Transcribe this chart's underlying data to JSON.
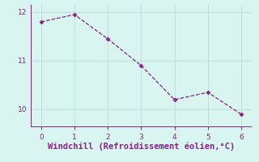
{
  "x": [
    0,
    1,
    2,
    3,
    4,
    5,
    6
  ],
  "y": [
    11.8,
    11.95,
    11.45,
    10.9,
    10.2,
    10.35,
    9.9
  ],
  "line_color": "#882288",
  "marker": "D",
  "marker_size": 2.5,
  "line_style": "--",
  "line_width": 0.9,
  "xlabel": "Windchill (Refroidissement éolien,°C)",
  "xlabel_fontsize": 7.5,
  "xlim": [
    -0.3,
    6.3
  ],
  "ylim": [
    9.65,
    12.15
  ],
  "yticks": [
    10,
    11,
    12
  ],
  "xticks": [
    0,
    1,
    2,
    3,
    4,
    5,
    6
  ],
  "background_color": "#d8f5ef",
  "grid_color": "#b8ddd8",
  "tick_color": "#882288",
  "tick_labelsize": 6.5,
  "fig_background": "#d8f5ef"
}
